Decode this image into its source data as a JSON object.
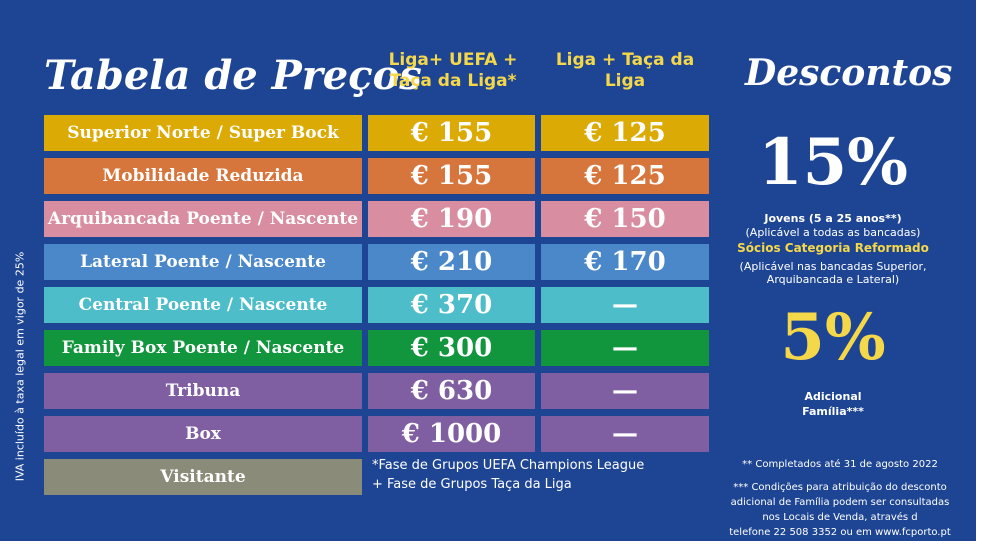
{
  "header": {
    "title": "Tabela de Preços",
    "columns": [
      "Liga+ UEFA + Taça da Liga*",
      "Liga + Taça da Liga"
    ]
  },
  "table": {
    "rows": [
      {
        "name": "Superior Norte / Super Bock",
        "prices": [
          "€ 155",
          "€ 125"
        ],
        "color": "#dcaa05"
      },
      {
        "name": "Mobilidade Reduzida",
        "prices": [
          "€ 155",
          "€ 125"
        ],
        "color": "#d6753c"
      },
      {
        "name": "Arquibancada Poente / Nascente",
        "prices": [
          "€ 190",
          "€ 150"
        ],
        "color": "#d98da1"
      },
      {
        "name": "Lateral Poente / Nascente",
        "prices": [
          "€ 210",
          "€ 170"
        ],
        "color": "#4a88ca"
      },
      {
        "name": "Central Poente / Nascente",
        "prices": [
          "€ 370",
          "—"
        ],
        "color": "#4dbdc9"
      },
      {
        "name": "Family Box Poente / Nascente",
        "prices": [
          "€ 300",
          "—"
        ],
        "color": "#12963d"
      },
      {
        "name": "Tribuna",
        "prices": [
          "€ 630",
          "—"
        ],
        "color": "#7f5fa2"
      },
      {
        "name": "Box",
        "prices": [
          "€ 1000",
          "—"
        ],
        "color": "#7f5fa2"
      },
      {
        "name": "Visitante",
        "prices": [],
        "color": "#8b8b7a"
      }
    ],
    "footnote": [
      "*Fase de Grupos UEFA Champions League",
      "+ Fase de Grupos Taça da Liga"
    ]
  },
  "side_note": "IVA incluído à taxa legal em vigor de 25%",
  "discounts": {
    "title": "Descontos",
    "big": "15%",
    "lines": [
      "Jovens (5 a 25 anos**)",
      "(Aplicável a todas as bancadas)",
      "Sócios Categoria Reformado",
      "(Aplicável nas bancadas Superior,",
      "Arquibancada e Lateral)"
    ],
    "big2": "5%",
    "extra": [
      "Adicional",
      "Família***"
    ],
    "notes": [
      "** Completados até 31 de agosto 2022",
      "*** Condições para atribuição do desconto",
      "adicional de Família podem ser consultadas",
      "nos Locais de Venda, através d",
      "telefone 22 508 3352 ou em www.fcporto.pt"
    ]
  }
}
